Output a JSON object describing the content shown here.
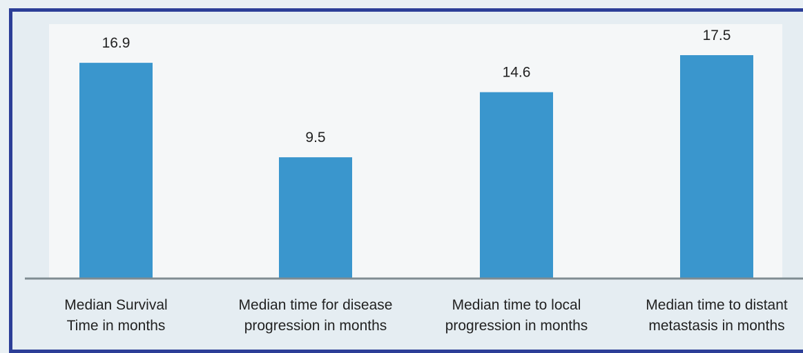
{
  "chart_data": {
    "type": "bar",
    "title": "",
    "categories": [
      [
        "Median Survival",
        "Time in months"
      ],
      [
        "Median time for disease",
        "progression in months"
      ],
      [
        "Median time to local",
        "progression in months"
      ],
      [
        "Median time to distant",
        "metastasis in months"
      ]
    ],
    "values": [
      16.9,
      9.5,
      14.6,
      17.5
    ],
    "value_labels": [
      "16.9",
      "9.5",
      "14.6",
      "17.5"
    ],
    "ylim": [
      0,
      17.5
    ],
    "grid": false,
    "legend": "none",
    "bar_color": "#3a96cd",
    "baseline_color": "#7f8c92"
  }
}
